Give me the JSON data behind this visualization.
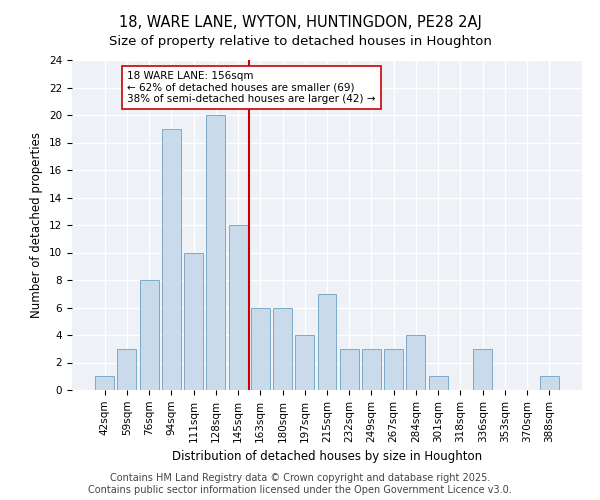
{
  "title": "18, WARE LANE, WYTON, HUNTINGDON, PE28 2AJ",
  "subtitle": "Size of property relative to detached houses in Houghton",
  "xlabel": "Distribution of detached houses by size in Houghton",
  "ylabel": "Number of detached properties",
  "categories": [
    "42sqm",
    "59sqm",
    "76sqm",
    "94sqm",
    "111sqm",
    "128sqm",
    "145sqm",
    "163sqm",
    "180sqm",
    "197sqm",
    "215sqm",
    "232sqm",
    "249sqm",
    "267sqm",
    "284sqm",
    "301sqm",
    "318sqm",
    "336sqm",
    "353sqm",
    "370sqm",
    "388sqm"
  ],
  "values": [
    1,
    3,
    8,
    19,
    10,
    20,
    12,
    6,
    6,
    4,
    7,
    3,
    3,
    3,
    4,
    1,
    0,
    3,
    0,
    0,
    1
  ],
  "bar_color": "#c9daea",
  "bar_edge_color": "#7aaac8",
  "vline_x": 6.5,
  "vline_color": "#cc0000",
  "annotation_line1": "18 WARE LANE: 156sqm",
  "annotation_line2": "← 62% of detached houses are smaller (69)",
  "annotation_line3": "38% of semi-detached houses are larger (42) →",
  "annotation_box_color": "#ffffff",
  "annotation_box_edge": "#cc0000",
  "ylim": [
    0,
    24
  ],
  "yticks": [
    0,
    2,
    4,
    6,
    8,
    10,
    12,
    14,
    16,
    18,
    20,
    22,
    24
  ],
  "footer": "Contains HM Land Registry data © Crown copyright and database right 2025.\nContains public sector information licensed under the Open Government Licence v3.0.",
  "bg_color": "#ffffff",
  "plot_bg_color": "#eef2f7",
  "title_fontsize": 10.5,
  "subtitle_fontsize": 9.5,
  "xlabel_fontsize": 8.5,
  "ylabel_fontsize": 8.5,
  "tick_fontsize": 7.5,
  "annotation_fontsize": 7.5,
  "footer_fontsize": 7
}
